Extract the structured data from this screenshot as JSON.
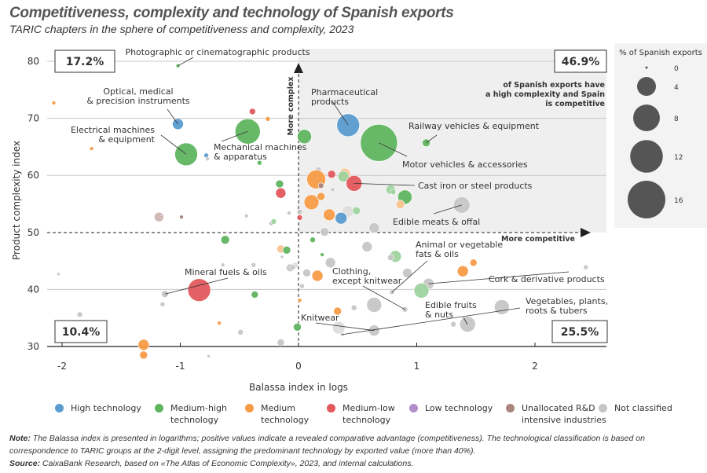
{
  "title": "Competitiveness, complexity and technology of Spanish exports",
  "subtitle": "TARIC chapters in the sphere of competitiveness and complexity, 2023",
  "chart_data": {
    "type": "scatter",
    "xlabel": "Balassa index in logs",
    "ylabel": "Product complexity index",
    "xlim": [
      -2.13,
      2.6
    ],
    "ylim": [
      30,
      82
    ],
    "xticks": [
      "-2",
      "-1",
      "0",
      "1",
      "2"
    ],
    "yticks": [
      "30",
      "40",
      "50",
      "60",
      "70",
      "80"
    ],
    "grid": "horizontal",
    "size_legend": {
      "title": "% of Spanish exports",
      "values": [
        "0",
        "4",
        "8",
        "12",
        "16"
      ]
    },
    "technology": {
      "H": {
        "name": "High technology",
        "color": "#5b9bd0"
      },
      "MH": {
        "name": "Medium-high technology",
        "color": "#5fb55f"
      },
      "M": {
        "name": "Medium technology",
        "color": "#f59b47"
      },
      "ML": {
        "name": "Medium-low technology",
        "color": "#e2585c"
      },
      "L": {
        "name": "Low technology",
        "color": "#b08fcc"
      },
      "U": {
        "name": "Unallocated R&D intensive industries",
        "color": "#a9847d"
      },
      "N": {
        "name": "Not classified",
        "color": "#c6c6c6"
      }
    },
    "points": [
      {
        "x": -1.02,
        "y": 79.2,
        "s": 0.17,
        "t": "MH"
      },
      {
        "x": -2.07,
        "y": 72.7,
        "s": 0.17,
        "t": "M"
      },
      {
        "x": -1.02,
        "y": 69.0,
        "s": 1.36,
        "t": "H"
      },
      {
        "x": -1.75,
        "y": 64.7,
        "s": 0.17,
        "t": "M"
      },
      {
        "x": -0.95,
        "y": 63.7,
        "s": 5.8,
        "t": "MH"
      },
      {
        "x": -0.78,
        "y": 63.5,
        "s": 0.25,
        "t": "H"
      },
      {
        "x": -0.77,
        "y": 62.9,
        "s": 0.17,
        "t": "N"
      },
      {
        "x": -0.39,
        "y": 71.2,
        "s": 0.44,
        "t": "ML"
      },
      {
        "x": -0.26,
        "y": 69.9,
        "s": 0.25,
        "t": "M"
      },
      {
        "x": -0.43,
        "y": 67.7,
        "s": 7.1,
        "t": "MH"
      },
      {
        "x": -0.33,
        "y": 62.2,
        "s": 0.25,
        "t": "MH"
      },
      {
        "x": -0.16,
        "y": 58.5,
        "s": 0.7,
        "t": "MH"
      },
      {
        "x": -0.15,
        "y": 56.9,
        "s": 1.17,
        "t": "ML"
      },
      {
        "x": -1.18,
        "y": 52.7,
        "s": 1.0,
        "t": "U",
        "faded": true
      },
      {
        "x": -1.16,
        "y": 52.7,
        "s": 0.06,
        "t": "U"
      },
      {
        "x": -0.99,
        "y": 52.7,
        "s": 0.17,
        "t": "U"
      },
      {
        "x": -0.44,
        "y": 52.9,
        "s": 0.17,
        "t": "N"
      },
      {
        "x": -0.08,
        "y": 53.4,
        "s": 0.17,
        "t": "N"
      },
      {
        "x": -0.23,
        "y": 51.6,
        "s": 0.25,
        "t": "N"
      },
      {
        "x": -0.21,
        "y": 51.9,
        "s": 0.34,
        "t": "MH",
        "faded": true
      },
      {
        "x": 0.01,
        "y": 52.6,
        "s": 0.34,
        "t": "ML"
      },
      {
        "x": 0.05,
        "y": 66.8,
        "s": 2.25,
        "t": "MH"
      },
      {
        "x": 0.42,
        "y": 68.8,
        "s": 5.8,
        "t": "H"
      },
      {
        "x": 0.68,
        "y": 65.7,
        "s": 15.3,
        "t": "MH"
      },
      {
        "x": 1.08,
        "y": 65.7,
        "s": 0.7,
        "t": "MH"
      },
      {
        "x": 0.17,
        "y": 61.0,
        "s": 0.34,
        "t": "N"
      },
      {
        "x": 0.28,
        "y": 60.2,
        "s": 0.7,
        "t": "ML"
      },
      {
        "x": 0.15,
        "y": 59.3,
        "s": 4.0,
        "t": "M"
      },
      {
        "x": 0.39,
        "y": 60.2,
        "s": 1.56,
        "t": "M",
        "faded": true
      },
      {
        "x": 0.38,
        "y": 59.8,
        "s": 1.36,
        "t": "MH",
        "faded": true
      },
      {
        "x": 0.47,
        "y": 58.6,
        "s": 2.8,
        "t": "ML"
      },
      {
        "x": 0.19,
        "y": 58.2,
        "s": 0.34,
        "t": "U"
      },
      {
        "x": 0.29,
        "y": 57.5,
        "s": 0.17,
        "t": "N"
      },
      {
        "x": 0.78,
        "y": 57.5,
        "s": 1.0,
        "t": "MH",
        "faded": true
      },
      {
        "x": 0.8,
        "y": 57.1,
        "s": 0.34,
        "t": "MH",
        "faded": true
      },
      {
        "x": 0.9,
        "y": 56.2,
        "s": 2.25,
        "t": "MH"
      },
      {
        "x": 0.86,
        "y": 54.9,
        "s": 0.84,
        "t": "M",
        "faded": true
      },
      {
        "x": 0.11,
        "y": 55.3,
        "s": 2.5,
        "t": "M"
      },
      {
        "x": 0.19,
        "y": 56.3,
        "s": 0.7,
        "t": "M"
      },
      {
        "x": 1.38,
        "y": 54.8,
        "s": 3.06,
        "t": "N"
      },
      {
        "x": 0.26,
        "y": 53.1,
        "s": 1.56,
        "t": "M"
      },
      {
        "x": 0.42,
        "y": 53.7,
        "s": 1.56,
        "t": "N",
        "faded": true
      },
      {
        "x": 0.49,
        "y": 53.8,
        "s": 0.7,
        "t": "MH",
        "faded": true
      },
      {
        "x": 0.36,
        "y": 52.5,
        "s": 1.56,
        "t": "H"
      },
      {
        "x": 0.01,
        "y": 53.6,
        "s": 0.34,
        "t": "N"
      },
      {
        "x": 0.64,
        "y": 50.8,
        "s": 1.17,
        "t": "N"
      },
      {
        "x": 0.22,
        "y": 50.1,
        "s": 0.84,
        "t": "N"
      },
      {
        "x": -0.62,
        "y": 48.7,
        "s": 0.84,
        "t": "MH"
      },
      {
        "x": -0.15,
        "y": 47.1,
        "s": 0.7,
        "t": "M",
        "faded": true
      },
      {
        "x": -0.1,
        "y": 46.9,
        "s": 0.7,
        "t": "MH"
      },
      {
        "x": -0.14,
        "y": 45.7,
        "s": 0.11,
        "t": "N"
      },
      {
        "x": -0.64,
        "y": 44.3,
        "s": 0.17,
        "t": "N"
      },
      {
        "x": -0.38,
        "y": 44.3,
        "s": 0.25,
        "t": "N"
      },
      {
        "x": -0.07,
        "y": 43.8,
        "s": 0.7,
        "t": "N"
      },
      {
        "x": -0.03,
        "y": 44.2,
        "s": 0.44,
        "t": "N",
        "faded": true
      },
      {
        "x": -2.03,
        "y": 42.7,
        "s": 0.11,
        "t": "N"
      },
      {
        "x": -0.84,
        "y": 39.9,
        "s": 5.8,
        "t": "ML"
      },
      {
        "x": -1.13,
        "y": 39.2,
        "s": 0.56,
        "t": "N"
      },
      {
        "x": -0.37,
        "y": 39.1,
        "s": 0.56,
        "t": "MH"
      },
      {
        "x": -1.15,
        "y": 37.4,
        "s": 0.25,
        "t": "N"
      },
      {
        "x": 0.01,
        "y": 38.1,
        "s": 0.17,
        "t": "M"
      },
      {
        "x": -1.85,
        "y": 35.6,
        "s": 0.34,
        "t": "N"
      },
      {
        "x": -0.67,
        "y": 34.1,
        "s": 0.17,
        "t": "M"
      },
      {
        "x": -0.49,
        "y": 32.5,
        "s": 0.34,
        "t": "N"
      },
      {
        "x": -0.01,
        "y": 33.4,
        "s": 0.7,
        "t": "MH"
      },
      {
        "x": -0.15,
        "y": 30.7,
        "s": 0.56,
        "t": "N"
      },
      {
        "x": -1.31,
        "y": 30.3,
        "s": 1.36,
        "t": "M"
      },
      {
        "x": -1.31,
        "y": 28.5,
        "s": 0.7,
        "t": "M"
      },
      {
        "x": -0.76,
        "y": 28.3,
        "s": 0.11,
        "t": "N"
      },
      {
        "x": 0.03,
        "y": 40.6,
        "s": 0.25,
        "t": "N"
      },
      {
        "x": 0.12,
        "y": 48.7,
        "s": 0.34,
        "t": "MH"
      },
      {
        "x": 0.2,
        "y": 46.1,
        "s": 0.17,
        "t": "MH"
      },
      {
        "x": 0.58,
        "y": 47.5,
        "s": 1.17,
        "t": "N"
      },
      {
        "x": 0.82,
        "y": 45.8,
        "s": 1.56,
        "t": "MH",
        "faded": true
      },
      {
        "x": 0.78,
        "y": 45.6,
        "s": 0.44,
        "t": "N"
      },
      {
        "x": 0.27,
        "y": 44.7,
        "s": 1.17,
        "t": "N"
      },
      {
        "x": -0.05,
        "y": 43.9,
        "s": 0.34,
        "t": "N"
      },
      {
        "x": 1.48,
        "y": 44.7,
        "s": 0.56,
        "t": "M"
      },
      {
        "x": 1.39,
        "y": 43.2,
        "s": 1.36,
        "t": "M"
      },
      {
        "x": 0.07,
        "y": 42.9,
        "s": 0.7,
        "t": "N"
      },
      {
        "x": 0.16,
        "y": 42.4,
        "s": 1.36,
        "t": "M"
      },
      {
        "x": 0.92,
        "y": 42.9,
        "s": 1.0,
        "t": "N"
      },
      {
        "x": 2.43,
        "y": 43.9,
        "s": 0.25,
        "t": "N"
      },
      {
        "x": 1.1,
        "y": 41.0,
        "s": 1.36,
        "t": "N"
      },
      {
        "x": 1.04,
        "y": 39.8,
        "s": 2.5,
        "t": "MH",
        "faded": true
      },
      {
        "x": 0.79,
        "y": 39.5,
        "s": 0.25,
        "t": "N"
      },
      {
        "x": 0.64,
        "y": 37.3,
        "s": 2.5,
        "t": "N"
      },
      {
        "x": 0.47,
        "y": 36.8,
        "s": 0.34,
        "t": "N"
      },
      {
        "x": 0.9,
        "y": 36.5,
        "s": 0.34,
        "t": "N"
      },
      {
        "x": 0.33,
        "y": 36.2,
        "s": 0.7,
        "t": "M"
      },
      {
        "x": 1.72,
        "y": 36.9,
        "s": 2.5,
        "t": "N"
      },
      {
        "x": 0.34,
        "y": 33.3,
        "s": 1.78,
        "t": "N",
        "faded": true
      },
      {
        "x": 0.37,
        "y": 32.1,
        "s": 0.17,
        "t": "N"
      },
      {
        "x": 0.64,
        "y": 32.8,
        "s": 1.36,
        "t": "N"
      },
      {
        "x": 1.31,
        "y": 33.9,
        "s": 0.34,
        "t": "N"
      },
      {
        "x": 1.43,
        "y": 33.9,
        "s": 2.78,
        "t": "N"
      }
    ],
    "annotations": [
      {
        "lines": [
          "Photographic or cinematographic products"
        ],
        "point": 0
      },
      {
        "lines": [
          "Optical, medical",
          "& precision instruments"
        ],
        "point": 2
      },
      {
        "lines": [
          "Electrical machines",
          "& equipment"
        ],
        "point": 4
      },
      {
        "lines": [
          "Mechanical machines",
          "& apparatus"
        ],
        "point": 9
      },
      {
        "lines": [
          "Pharmaceutical",
          "products"
        ],
        "point": 22
      },
      {
        "lines": [
          "Railway vehicles & equipment"
        ],
        "point": 24
      },
      {
        "lines": [
          "Motor vehicles & accessories"
        ],
        "point": 23
      },
      {
        "lines": [
          "Cast iron or steel products"
        ],
        "point": 30
      },
      {
        "lines": [
          "Edible meats & offal"
        ],
        "point": 39
      },
      {
        "lines": [
          "Mineral fuels & oils"
        ],
        "point": 57
      },
      {
        "lines": [
          "Clothing,",
          "except knitwear"
        ],
        "point": 88
      },
      {
        "lines": [
          "Animal or vegetable",
          "fats & oils"
        ],
        "point": 85
      },
      {
        "lines": [
          "Cork & derivative products"
        ],
        "point": 83
      },
      {
        "lines": [
          "Edible fruits",
          "& nuts"
        ],
        "point": 97
      },
      {
        "lines": [
          "Vegetables, plants,",
          "roots & tubers"
        ],
        "point": 92
      },
      {
        "lines": [
          "Knitwear"
        ],
        "point": 93
      }
    ],
    "quadrants": {
      "top_left": "17.2%",
      "top_right": "46.9%",
      "bottom_left": "10.4%",
      "bottom_right": "25.5%"
    },
    "top_right_note": [
      "of Spanish exports have",
      "a high complexity and Spain",
      "is competitive"
    ],
    "arrow_x_label": "More competitive",
    "arrow_y_label": "More complex"
  },
  "legend": [
    {
      "key": "H",
      "lines": [
        "High technology"
      ]
    },
    {
      "key": "MH",
      "lines": [
        "Medium-high",
        "technology"
      ]
    },
    {
      "key": "M",
      "lines": [
        "Medium",
        "technology"
      ]
    },
    {
      "key": "ML",
      "lines": [
        "Medium-low",
        "technology"
      ]
    },
    {
      "key": "L",
      "lines": [
        "Low technology"
      ]
    },
    {
      "key": "U",
      "lines": [
        "Unallocated R&D",
        "intensive industries"
      ]
    },
    {
      "key": "N",
      "lines": [
        "Not classified"
      ]
    }
  ],
  "note": {
    "label": "Note:",
    "text": "The Balassa index is presented in logarithms; positive values indicate a revealed comparative advantage (competitiveness). The technological classification is based on correspondence to TARIC groups at the 2-digit level, assigning the predominant technology by exported value (more than 40%)."
  },
  "source": {
    "label": "Source:",
    "text": "CaixaBank Research, based on «The Atlas of Economic Complexity», 2023, and internal calculations."
  }
}
